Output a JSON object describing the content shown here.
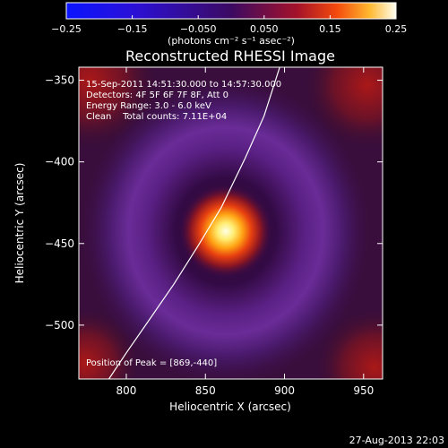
{
  "chart_data": {
    "type": "heatmap",
    "title": "Reconstructed RHESSI Image",
    "xlabel": "Heliocentric X (arcsec)",
    "ylabel": "Heliocentric Y (arcsec)",
    "xlim": [
      770,
      962
    ],
    "ylim": [
      -533,
      -342
    ],
    "x_ticks": [
      800,
      850,
      900,
      950
    ],
    "x_tick_labels": [
      "800",
      "850",
      "900",
      "950"
    ],
    "y_ticks": [
      -350,
      -400,
      -450,
      -500
    ],
    "y_tick_labels": [
      "−350",
      "−400",
      "−450",
      "−500"
    ],
    "colorbar": {
      "range": [
        -0.25,
        0.25
      ],
      "ticks": [
        -0.25,
        -0.15,
        -0.05,
        0.05,
        0.15,
        0.25
      ],
      "tick_labels": [
        "−0.25",
        "−0.15",
        "−0.050",
        "0.050",
        "0.15",
        "0.25"
      ],
      "unit_label": "(photons cm⁻² s⁻¹ asec⁻²)"
    },
    "annotations": [
      "15-Sep-2011 14:51:30.000 to 14:57:30.000",
      "Detectors: 4F 5F 6F 7F 8F, Att 0",
      "Energy Range: 3.0 - 6.0 keV",
      "Clean    Total counts: 7.11E+04",
      "Position of Peak = [869,-440]"
    ],
    "peak_position": [
      869,
      -440
    ],
    "limb_curve": {
      "x": [
        789,
        800,
        815,
        830,
        845,
        860,
        875,
        887,
        897
      ],
      "y": [
        -533,
        -517,
        -496,
        -475,
        -452,
        -428,
        -398,
        -372,
        -342
      ]
    },
    "grid": false
  },
  "footer": {
    "timestamp": "27-Aug-2013 22:03"
  }
}
